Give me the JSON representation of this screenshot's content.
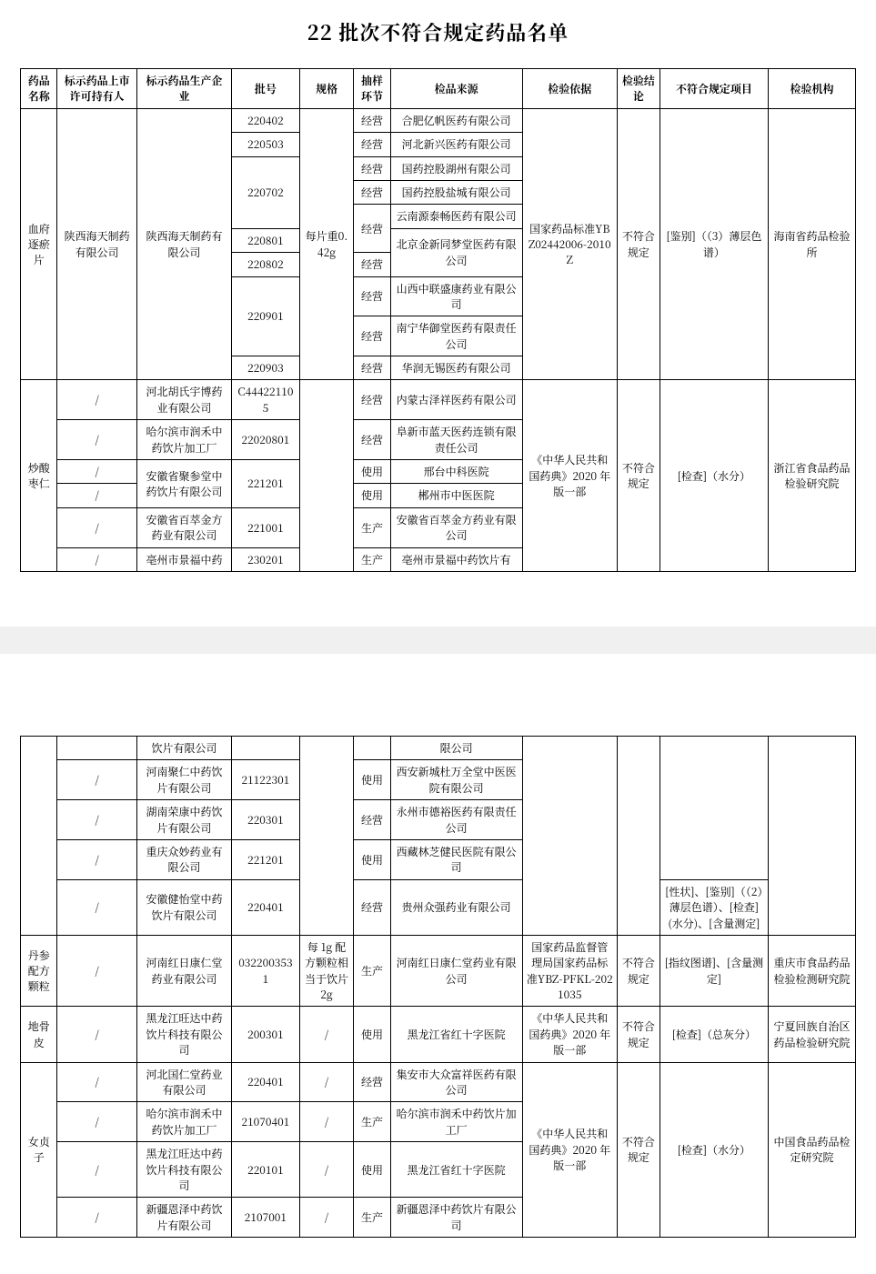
{
  "title": "22 批次不符合规定药品名单",
  "headers": {
    "c1": "药品名称",
    "c2": "标示药品上市许可持有人",
    "c3": "标示药品生产企业",
    "c4": "批号",
    "c5": "规格",
    "c6": "抽样环节",
    "c7": "检品来源",
    "c8": "检验依据",
    "c9": "检验结论",
    "c10": "不符合规定项目",
    "c11": "检验机构"
  },
  "t1": {
    "g1_name": "血府逐瘀片",
    "g1_holder": "陕西海天制药有限公司",
    "g1_maker": "陕西海天制药有限公司",
    "g1_spec": "每片重0.42g",
    "g1_basis": "国家药品标准YBZ02442006-2010Z",
    "g1_conc": "不符合规定",
    "g1_item": "[鉴别]（（3）薄层色谱）",
    "g1_inst": "海南省药品检验所",
    "r1_batch": "220402",
    "r1_stage": "经营",
    "r1_src": "合肥亿帆医药有限公司",
    "r2_batch": "220503",
    "r2_stage": "经营",
    "r2_src": "河北新兴医药有限公司",
    "r3_batch": "220702",
    "r3_stage": "经营",
    "r3_src": "国药控股湖州有限公司",
    "r4_stage": "经营",
    "r4_src": "国药控股盐城有限公司",
    "r5_stage": "经营",
    "r5_src": "云南源泰畅医药有限公司",
    "r6_batch": "220801",
    "r7_batch": "220802",
    "r7_stage": "经营",
    "r7_src": "北京金新同梦堂医药有限公司",
    "r8_batch": "220901",
    "r8_stage": "经营",
    "r8_src": "山西中联盛康药业有限公司",
    "r9_stage": "经营",
    "r9_src": "南宁华御堂医药有限责任公司",
    "r10_batch": "220903",
    "r10_stage": "经营",
    "r10_src": "华润无锡医药有限公司",
    "g2_name": "炒酸枣仁",
    "g2_conc": "不符合规定",
    "g2_item": "[检查]（水分）",
    "g2_inst": "浙江省食品药品检验研究院",
    "g2_basis": "《中华人民共和国药典》2020 年版一部",
    "r11_holder": "/",
    "r11_maker": "河北胡氏宇博药业有限公司",
    "r11_batch": "C444221105",
    "r11_stage": "经营",
    "r11_src": "内蒙古泽祥医药有限公司",
    "r12_holder": "/",
    "r12_maker": "哈尔滨市润禾中药饮片加工厂",
    "r12_batch": "22020801",
    "r12_stage": "经营",
    "r12_src": "阜新市蓝天医药连锁有限责任公司",
    "r13_holder": "/",
    "r13_maker": "安徽省聚参堂中药饮片有限公司",
    "r13_batch": "221201",
    "r13_stage": "使用",
    "r13_src": "邢台中科医院",
    "r14_holder": "/",
    "r14_stage": "使用",
    "r14_src": "郴州市中医医院",
    "r15_holder": "/",
    "r15_maker": "安徽省百萃金方药业有限公司",
    "r15_batch": "221001",
    "r15_stage": "生产",
    "r15_src": "安徽省百萃金方药业有限公司",
    "r16_holder": "/",
    "r16_maker": "亳州市景福中药",
    "r16_batch": "230201",
    "r16_stage": "生产",
    "r16_src": "亳州市景福中药饮片有"
  },
  "t2": {
    "r0_maker": "饮片有限公司",
    "r0_src": "限公司",
    "r1_holder": "/",
    "r1_maker": "河南聚仁中药饮片有限公司",
    "r1_batch": "21122301",
    "r1_stage": "使用",
    "r1_src": "西安新城杜万全堂中医医院有限公司",
    "r2_holder": "/",
    "r2_maker": "湖南荣康中药饮片有限公司",
    "r2_batch": "220301",
    "r2_stage": "经营",
    "r2_src": "永州市德裕医药有限责任公司",
    "r3_holder": "/",
    "r3_maker": "重庆众妙药业有限公司",
    "r3_batch": "221201",
    "r3_stage": "使用",
    "r3_src": "西藏林芝健民医院有限公司",
    "r4_holder": "/",
    "r4_maker": "安徽健怡堂中药饮片有限公司",
    "r4_batch": "220401",
    "r4_stage": "经营",
    "r4_src": "贵州众强药业有限公司",
    "r4_item": "[性状]、[鉴别]（（2）薄层色谱）、[检查](水分)、[含量测定]",
    "g_ds_name": "丹参配方颗粒",
    "g_ds_holder": "/",
    "g_ds_maker": "河南红日康仁堂药业有限公司",
    "g_ds_batch": "0322003531",
    "g_ds_spec": "每 1g 配方颗粒相当于饮片 2g",
    "g_ds_stage": "生产",
    "g_ds_src": "河南红日康仁堂药业有限公司",
    "g_ds_basis": "国家药品监督管理局国家药品标准YBZ-PFKL-2021035",
    "g_ds_conc": "不符合规定",
    "g_ds_item": "[指纹图谱]、[含量测定]",
    "g_ds_inst": "重庆市食品药品检验检测研究院",
    "g_dgp_name": "地骨皮",
    "g_dgp_holder": "/",
    "g_dgp_maker": "黑龙江旺达中药饮片科技有限公司",
    "g_dgp_batch": "200301",
    "g_dgp_spec": "/",
    "g_dgp_stage": "使用",
    "g_dgp_src": "黑龙江省红十字医院",
    "g_dgp_basis": "《中华人民共和国药典》2020 年版一部",
    "g_dgp_conc": "不符合规定",
    "g_dgp_item": "[检查]（总灰分）",
    "g_dgp_inst": "宁夏回族自治区药品检验研究院",
    "g_nzz_name": "女贞子",
    "g_nzz_basis": "《中华人民共和国药典》2020 年版一部",
    "g_nzz_conc": "不符合规定",
    "g_nzz_item": "[检查]（水分）",
    "g_nzz_inst": "中国食品药品检定研究院",
    "nz1_holder": "/",
    "nz1_maker": "河北国仁堂药业有限公司",
    "nz1_batch": "220401",
    "nz1_spec": "/",
    "nz1_stage": "经营",
    "nz1_src": "集安市大众富祥医药有限公司",
    "nz2_holder": "/",
    "nz2_maker": "哈尔滨市润禾中药饮片加工厂",
    "nz2_batch": "21070401",
    "nz2_spec": "/",
    "nz2_stage": "生产",
    "nz2_src": "哈尔滨市润禾中药饮片加工厂",
    "nz3_holder": "/",
    "nz3_maker": "黑龙江旺达中药饮片科技有限公司",
    "nz3_batch": "220101",
    "nz3_spec": "/",
    "nz3_stage": "使用",
    "nz3_src": "黑龙江省红十字医院",
    "nz4_holder": "/",
    "nz4_maker": "新疆恩泽中药饮片有限公司",
    "nz4_batch": "2107001",
    "nz4_spec": "/",
    "nz4_stage": "生产",
    "nz4_src": "新疆恩泽中药饮片有限公司"
  }
}
